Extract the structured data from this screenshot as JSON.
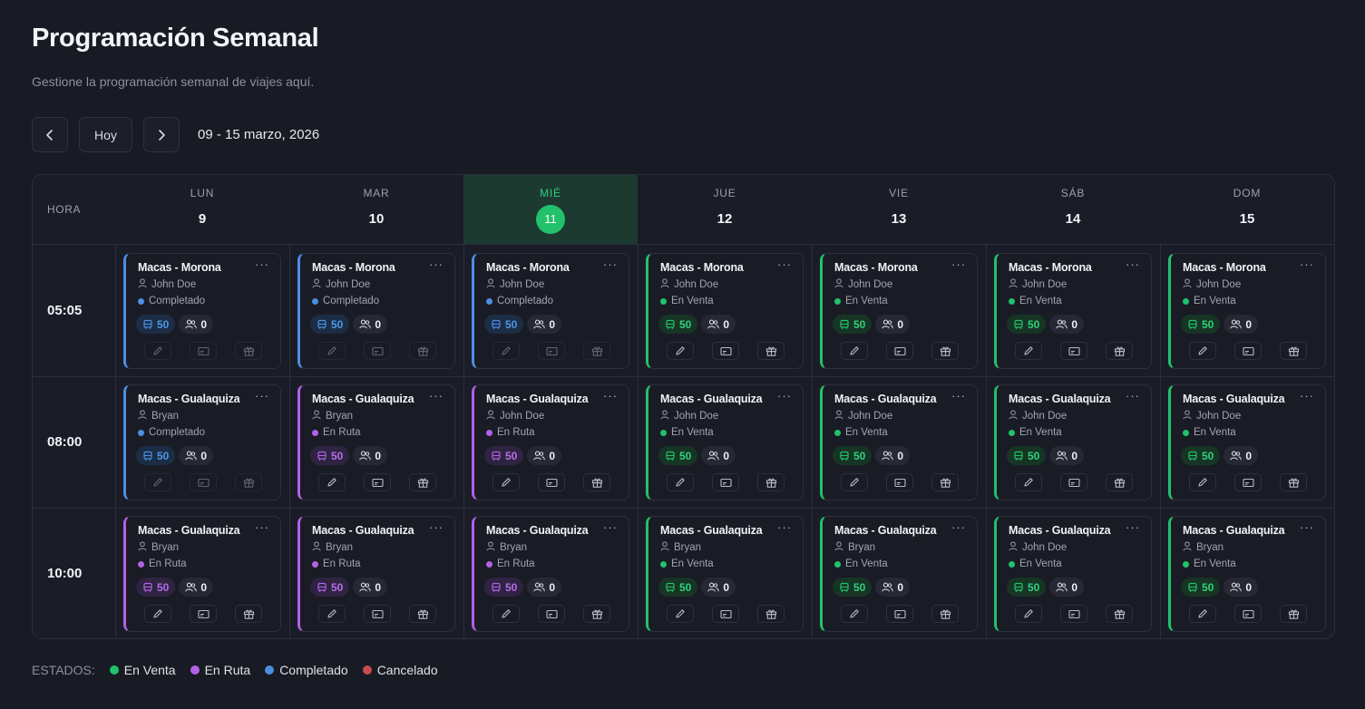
{
  "header": {
    "title": "Programación Semanal",
    "subtitle": "Gestione la programación semanal de viajes aquí."
  },
  "nav": {
    "prev_icon": "chevron-left-icon",
    "today_label": "Hoy",
    "next_icon": "chevron-right-icon",
    "range": "09 - 15 marzo, 2026"
  },
  "grid": {
    "hora_label": "HORA",
    "today_index": 2,
    "days": [
      {
        "name": "LUN",
        "num": "9"
      },
      {
        "name": "MAR",
        "num": "10"
      },
      {
        "name": "MIÉ",
        "num": "11"
      },
      {
        "name": "JUE",
        "num": "12"
      },
      {
        "name": "VIE",
        "num": "13"
      },
      {
        "name": "SÁB",
        "num": "14"
      },
      {
        "name": "DOM",
        "num": "15"
      }
    ],
    "rows": [
      {
        "time": "05:05",
        "cards": [
          {
            "route": "Macas - Morona",
            "driver": "John Doe",
            "status": "Completado",
            "seats": "50",
            "passengers": "0"
          },
          {
            "route": "Macas - Morona",
            "driver": "John Doe",
            "status": "Completado",
            "seats": "50",
            "passengers": "0"
          },
          {
            "route": "Macas - Morona",
            "driver": "John Doe",
            "status": "Completado",
            "seats": "50",
            "passengers": "0"
          },
          {
            "route": "Macas - Morona",
            "driver": "John Doe",
            "status": "En Venta",
            "seats": "50",
            "passengers": "0"
          },
          {
            "route": "Macas - Morona",
            "driver": "John Doe",
            "status": "En Venta",
            "seats": "50",
            "passengers": "0"
          },
          {
            "route": "Macas - Morona",
            "driver": "John Doe",
            "status": "En Venta",
            "seats": "50",
            "passengers": "0"
          },
          {
            "route": "Macas - Morona",
            "driver": "John Doe",
            "status": "En Venta",
            "seats": "50",
            "passengers": "0"
          }
        ]
      },
      {
        "time": "08:00",
        "cards": [
          {
            "route": "Macas - Gualaquiza",
            "driver": "Bryan",
            "status": "Completado",
            "seats": "50",
            "passengers": "0"
          },
          {
            "route": "Macas - Gualaquiza",
            "driver": "Bryan",
            "status": "En Ruta",
            "seats": "50",
            "passengers": "0"
          },
          {
            "route": "Macas - Gualaquiza",
            "driver": "John Doe",
            "status": "En Ruta",
            "seats": "50",
            "passengers": "0"
          },
          {
            "route": "Macas - Gualaquiza",
            "driver": "John Doe",
            "status": "En Venta",
            "seats": "50",
            "passengers": "0"
          },
          {
            "route": "Macas - Gualaquiza",
            "driver": "John Doe",
            "status": "En Venta",
            "seats": "50",
            "passengers": "0"
          },
          {
            "route": "Macas - Gualaquiza",
            "driver": "John Doe",
            "status": "En Venta",
            "seats": "50",
            "passengers": "0"
          },
          {
            "route": "Macas - Gualaquiza",
            "driver": "John Doe",
            "status": "En Venta",
            "seats": "50",
            "passengers": "0"
          }
        ]
      },
      {
        "time": "10:00",
        "cards": [
          {
            "route": "Macas - Gualaquiza",
            "driver": "Bryan",
            "status": "En Ruta",
            "seats": "50",
            "passengers": "0"
          },
          {
            "route": "Macas - Gualaquiza",
            "driver": "Bryan",
            "status": "En Ruta",
            "seats": "50",
            "passengers": "0"
          },
          {
            "route": "Macas - Gualaquiza",
            "driver": "Bryan",
            "status": "En Ruta",
            "seats": "50",
            "passengers": "0"
          },
          {
            "route": "Macas - Gualaquiza",
            "driver": "Bryan",
            "status": "En Venta",
            "seats": "50",
            "passengers": "0"
          },
          {
            "route": "Macas - Gualaquiza",
            "driver": "Bryan",
            "status": "En Venta",
            "seats": "50",
            "passengers": "0"
          },
          {
            "route": "Macas - Gualaquiza",
            "driver": "John Doe",
            "status": "En Venta",
            "seats": "50",
            "passengers": "0"
          },
          {
            "route": "Macas - Gualaquiza",
            "driver": "Bryan",
            "status": "En Venta",
            "seats": "50",
            "passengers": "0"
          }
        ]
      }
    ]
  },
  "legend": {
    "label": "ESTADOS:",
    "items": [
      {
        "label": "En Venta",
        "color": "#22c16b"
      },
      {
        "label": "En Ruta",
        "color": "#b162e6"
      },
      {
        "label": "Completado",
        "color": "#4a8fe0"
      },
      {
        "label": "Cancelado",
        "color": "#c94b4b"
      }
    ]
  },
  "status_colors": {
    "En Venta": "#22c16b",
    "En Ruta": "#b162e6",
    "Completado": "#4a8fe0",
    "Cancelado": "#c94b4b"
  },
  "icons": {
    "card_menu": "more-horizontal-icon",
    "driver": "user-icon",
    "seats": "bus-icon",
    "passengers": "users-icon",
    "actions": [
      "edit-icon",
      "ticket-icon",
      "gift-icon"
    ]
  }
}
